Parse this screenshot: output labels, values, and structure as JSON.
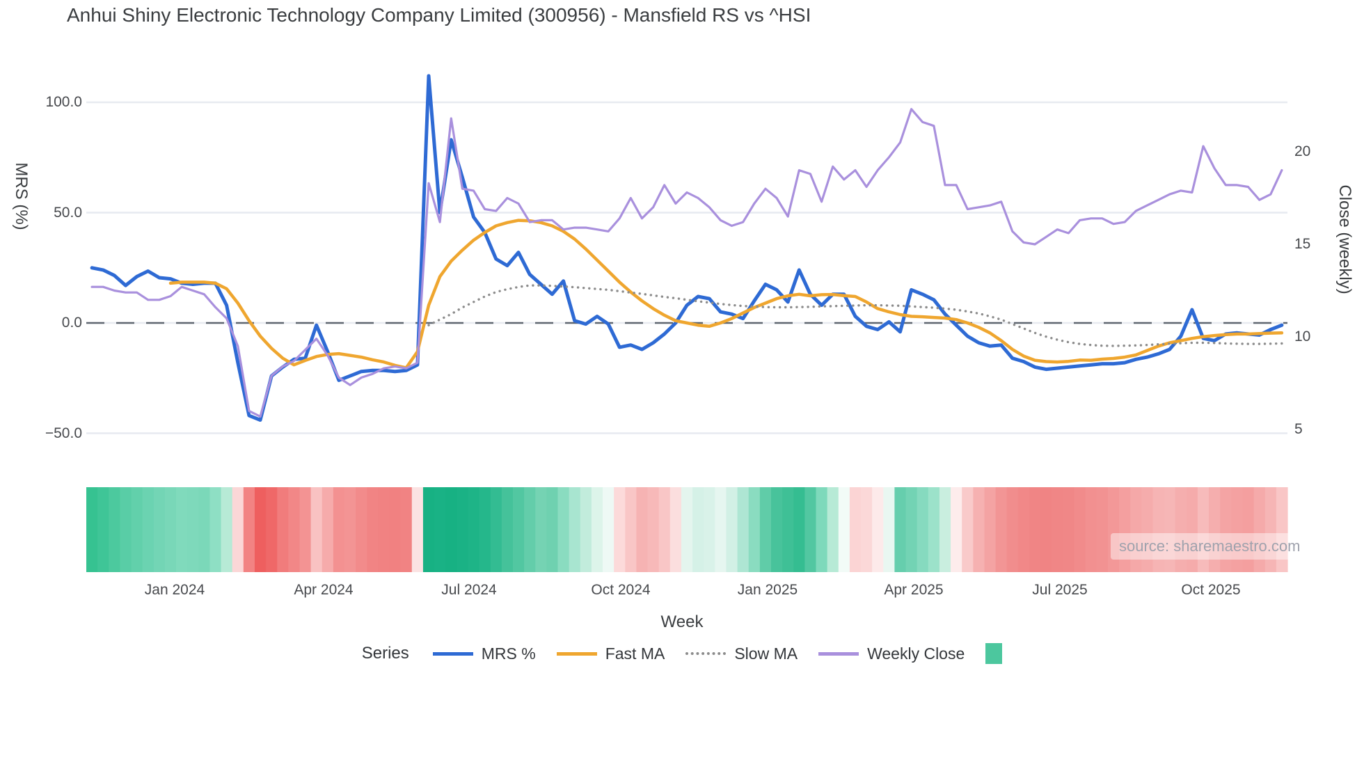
{
  "header": {
    "title": "Anhui Shiny Electronic Technology Company Limited (300956) - Mansfield RS vs ^HSI"
  },
  "watermark": {
    "text": "source: sharemaestro.com"
  },
  "legend": {
    "title": "Series",
    "heat_swatch_color": "#4cc79e"
  },
  "colors": {
    "background": "#ffffff",
    "grid": "#e7eaf0",
    "zero_line": "#5f6670",
    "tick_text": "#47494d",
    "title_text": "#3a3d40",
    "watermark_text": "#9fa2ad"
  },
  "chart_data": {
    "type": "line",
    "title": "Anhui Shiny Electronic Technology Company Limited (300956) - Mansfield RS vs ^HSI",
    "n_weeks": 107,
    "x_axis": {
      "title": "Week",
      "ticks": [
        {
          "label": "Jan 2024",
          "week": 7.87
        },
        {
          "label": "Apr 2024",
          "week": 21.14
        },
        {
          "label": "Jul 2024",
          "week": 34.1
        },
        {
          "label": "Oct 2024",
          "week": 47.6
        },
        {
          "label": "Jan 2025",
          "week": 60.7
        },
        {
          "label": "Apr 2025",
          "week": 73.7
        },
        {
          "label": "Jul 2025",
          "week": 86.7
        },
        {
          "label": "Oct 2025",
          "week": 100.2
        }
      ]
    },
    "y_left": {
      "title": "MRS (%)",
      "range": [
        -58,
        119
      ],
      "ticks": [
        {
          "label": "100.0",
          "value": 100
        },
        {
          "label": "50.0",
          "value": 50
        },
        {
          "label": "0.0",
          "value": 0
        },
        {
          "label": "−50.0",
          "value": -50
        }
      ],
      "zero_line_dashed": true
    },
    "y_right": {
      "title": "Close (weekly)",
      "range": [
        3.8,
        25
      ],
      "ticks": [
        {
          "label": "20",
          "value": 20
        },
        {
          "label": "15",
          "value": 15
        },
        {
          "label": "10",
          "value": 10
        },
        {
          "label": "5",
          "value": 5
        }
      ]
    },
    "series": [
      {
        "name": "MRS %",
        "axis": "left",
        "color": "#2e6ad4",
        "style": "solid",
        "width": 5,
        "values": [
          25,
          24,
          21.5,
          17,
          21,
          23.5,
          20.5,
          20,
          18,
          17.5,
          18,
          18,
          8,
          -18,
          -42,
          -44,
          -24,
          -20,
          -16.5,
          -16,
          -1,
          -13,
          -26,
          -24,
          -22,
          -21.5,
          -21.5,
          -22,
          -21.5,
          -19,
          112,
          50,
          83,
          66,
          48,
          41,
          29,
          26,
          32,
          22,
          17.5,
          13,
          19,
          1,
          -0.5,
          3,
          -0.5,
          -11,
          -10,
          -12,
          -9,
          -5,
          0,
          8,
          12,
          11,
          5,
          4,
          2,
          10,
          17.5,
          15,
          9.5,
          24,
          13,
          8,
          13,
          13,
          3,
          -1.5,
          -3,
          0.5,
          -4,
          15,
          13,
          10.5,
          4,
          -1,
          -6,
          -9,
          -10.5,
          -10,
          -16,
          -17.5,
          -20,
          -21,
          -20.5,
          -20,
          -19.5,
          -19,
          -18.5,
          -18.5,
          -18,
          -16.5,
          -15.5,
          -14,
          -12,
          -6,
          6,
          -7,
          -8,
          -5,
          -4.5,
          -5,
          -5.5,
          -3,
          -1
        ]
      },
      {
        "name": "Fast MA",
        "axis": "left",
        "color": "#efa62f",
        "style": "solid",
        "width": 4.5,
        "values": [
          null,
          null,
          null,
          null,
          null,
          null,
          null,
          18,
          18.5,
          18.5,
          18.5,
          18,
          15.5,
          9,
          1,
          -6,
          -11.5,
          -16,
          -19,
          -17,
          -15.2,
          -14.3,
          -13.9,
          -14.7,
          -15.5,
          -16.7,
          -17.7,
          -19.2,
          -20.3,
          -13,
          8,
          21,
          28,
          33,
          37.5,
          41,
          44,
          45.5,
          46.5,
          46.3,
          45.5,
          44,
          41.5,
          38,
          33.5,
          28.5,
          23.5,
          18.5,
          14,
          10,
          6.5,
          3.5,
          1,
          0,
          -1,
          -1.5,
          0,
          2,
          4.5,
          7,
          9,
          11,
          12.3,
          13,
          12.3,
          12.8,
          12.9,
          12.4,
          12,
          9.5,
          6.5,
          5,
          3.8,
          3,
          2.8,
          2.5,
          2.2,
          1.5,
          0,
          -2,
          -4.5,
          -8,
          -12,
          -15,
          -16.9,
          -17.5,
          -17.7,
          -17.4,
          -16.8,
          -16.9,
          -16.4,
          -16.1,
          -15.5,
          -14.5,
          -12.5,
          -10.5,
          -9,
          -8,
          -7,
          -6.2,
          -5.7,
          -5.3,
          -5,
          -5,
          -4.8,
          -4.6,
          -4.5
        ]
      },
      {
        "name": "Slow MA",
        "axis": "left",
        "color": "#8c8c8c",
        "style": "dotted",
        "width": 3.4,
        "values": [
          null,
          null,
          null,
          null,
          null,
          null,
          null,
          null,
          null,
          null,
          null,
          null,
          null,
          null,
          null,
          null,
          null,
          null,
          null,
          null,
          null,
          null,
          null,
          null,
          null,
          null,
          null,
          null,
          null,
          null,
          -1,
          1.5,
          4,
          7,
          9.5,
          12,
          14,
          15.3,
          16.3,
          17,
          17,
          16.8,
          16.5,
          16.2,
          15.8,
          15.4,
          15,
          14.4,
          13.8,
          13.2,
          12.5,
          11.8,
          11.2,
          10.5,
          9.8,
          9.2,
          8.6,
          8.1,
          7.7,
          7.4,
          7.2,
          7.1,
          7.1,
          7.2,
          7.3,
          7.5,
          7.6,
          7.8,
          7.9,
          8,
          8,
          7.9,
          7.8,
          7.5,
          7.2,
          6.9,
          6.5,
          6,
          5.2,
          4.3,
          3,
          1.5,
          -0.5,
          -2.5,
          -4.5,
          -6.2,
          -7.6,
          -8.7,
          -9.5,
          -10,
          -10.3,
          -10.4,
          -10.3,
          -10.2,
          -10,
          -9.7,
          -9.4,
          -9.2,
          -9,
          -9,
          -9.1,
          -9.3,
          -9.4,
          -9.5,
          -9.5,
          -9.4,
          -9.3
        ]
      },
      {
        "name": "Weekly Close",
        "axis": "right",
        "color": "#a990dd",
        "style": "solid",
        "width": 3.2,
        "values": [
          12.7,
          12.7,
          12.5,
          12.4,
          12.4,
          12,
          12,
          12.2,
          12.7,
          12.5,
          12.3,
          11.6,
          11,
          9.5,
          6,
          5.7,
          7.9,
          8.4,
          8.7,
          9.3,
          9.9,
          9,
          7.8,
          7.4,
          7.8,
          8,
          8.3,
          8.4,
          8.3,
          8.6,
          18.3,
          16.2,
          21.8,
          18,
          17.9,
          16.9,
          16.8,
          17.5,
          17.2,
          16.2,
          16.3,
          16.3,
          15.8,
          15.9,
          15.9,
          15.8,
          15.7,
          16.4,
          17.5,
          16.4,
          17,
          18.2,
          17.2,
          17.8,
          17.5,
          17,
          16.3,
          16,
          16.2,
          17.2,
          18,
          17.5,
          16.5,
          19,
          18.8,
          17.3,
          19.2,
          18.5,
          19,
          18.1,
          19,
          19.7,
          20.5,
          22.3,
          21.6,
          21.4,
          18.2,
          18.2,
          16.9,
          17,
          17.1,
          17.3,
          15.7,
          15.1,
          15,
          15.4,
          15.8,
          15.6,
          16.3,
          16.4,
          16.4,
          16.1,
          16.2,
          16.8,
          17.1,
          17.4,
          17.7,
          17.9,
          17.8,
          20.3,
          19.1,
          18.2,
          18.2,
          18.1,
          17.4,
          17.7,
          19
        ]
      }
    ],
    "heatmap_strip": {
      "description": "weekly MRS regime strip, green=positive, red=negative",
      "colors": [
        "#36c291",
        "#3fc597",
        "#4cc99e",
        "#59cda6",
        "#62d0ab",
        "#6bd3b1",
        "#73d5b5",
        "#79d7b8",
        "#80dabc",
        "#7ed9bb",
        "#7bd8b9",
        "#8edfc4",
        "#b7ead6",
        "#fbd7d7",
        "#f28383",
        "#ee5f5f",
        "#ef6868",
        "#f17c7c",
        "#f28787",
        "#f39393",
        "#f9c2c2",
        "#f6abab",
        "#f39191",
        "#f39494",
        "#f28b8b",
        "#f18484",
        "#f18282",
        "#f18181",
        "#f18383",
        "#fbe3e3",
        "#17b183",
        "#19b285",
        "#17b183",
        "#1ab285",
        "#1eb487",
        "#25b78b",
        "#33bc92",
        "#45c29a",
        "#52c7a1",
        "#63cdaa",
        "#75d3b3",
        "#6fd1b0",
        "#8adcc0",
        "#a8e5d0",
        "#c2ecdc",
        "#ddf4ea",
        "#eef9f5",
        "#fcdada",
        "#f9c6c6",
        "#f6b3b3",
        "#f7b9b9",
        "#f9c6c6",
        "#fbdede",
        "#e4f5ee",
        "#d5f1e7",
        "#d9f2e9",
        "#e6f6f0",
        "#d2f0e5",
        "#aee6d3",
        "#8adcc0",
        "#60cca8",
        "#48c39b",
        "#3fc096",
        "#35bd91",
        "#52c7a1",
        "#7ed9bb",
        "#b7ead6",
        "#f2fbf7",
        "#fbd4d4",
        "#fbd8d8",
        "#fdeaea",
        "#e9f7f1",
        "#66cead",
        "#73d3b4",
        "#86dabf",
        "#9ce2ca",
        "#c9eedf",
        "#fdecec",
        "#f9caca",
        "#f6b1b1",
        "#f4a3a3",
        "#f29595",
        "#f18d8d",
        "#f18888",
        "#f08585",
        "#f08484",
        "#f08686",
        "#f08787",
        "#f18b8b",
        "#f29090",
        "#f29292",
        "#f39898",
        "#f49f9f",
        "#f5a8a8",
        "#f5acac",
        "#f6b4b4",
        "#f6b6b6",
        "#f5aeae",
        "#f5abab",
        "#f7bbbb",
        "#f5aeae",
        "#f4a4a4",
        "#f4a1a1",
        "#f49f9f",
        "#f5aaaa",
        "#f6b5b5",
        "#f9c6c6"
      ]
    }
  }
}
